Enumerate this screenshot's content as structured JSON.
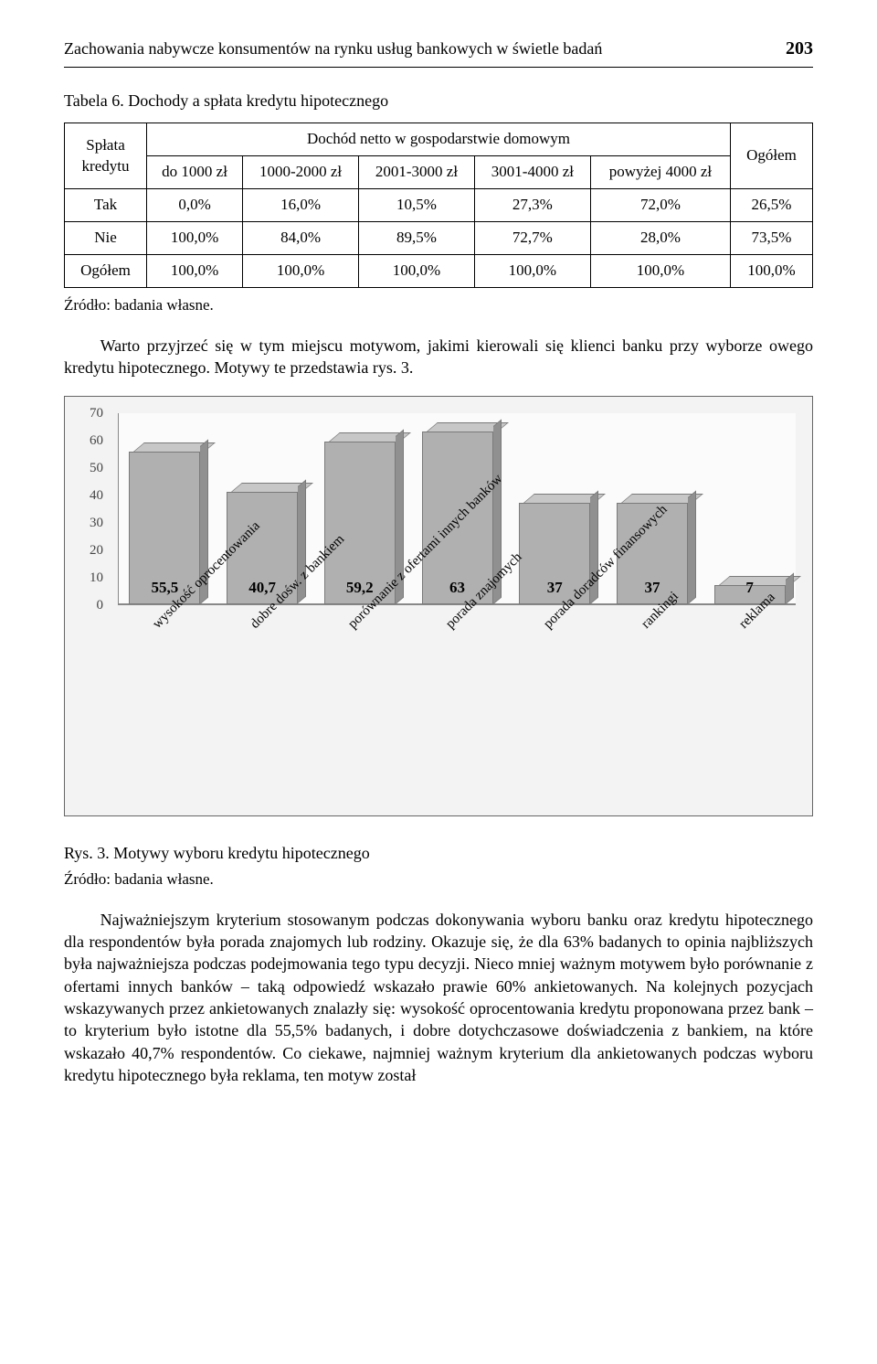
{
  "header": {
    "running_title": "Zachowania nabywcze konsumentów na rynku usług bankowych w świetle badań",
    "page_number": "203"
  },
  "table6": {
    "caption": "Tabela 6. Dochody a spłata kredytu hipotecznego",
    "row_header_top": "Spłata",
    "row_header_bottom": "kredytu",
    "super_header": "Dochód netto w gospodarstwie domowym",
    "total_header": "Ogółem",
    "cols": [
      "do 1000 zł",
      "1000-2000 zł",
      "2001-3000 zł",
      "3001-4000 zł",
      "powyżej 4000 zł"
    ],
    "rows": [
      {
        "label": "Tak",
        "cells": [
          "0,0%",
          "16,0%",
          "10,5%",
          "27,3%",
          "72,0%"
        ],
        "total": "26,5%"
      },
      {
        "label": "Nie",
        "cells": [
          "100,0%",
          "84,0%",
          "89,5%",
          "72,7%",
          "28,0%"
        ],
        "total": "73,5%"
      },
      {
        "label": "Ogółem",
        "cells": [
          "100,0%",
          "100,0%",
          "100,0%",
          "100,0%",
          "100,0%"
        ],
        "total": "100,0%"
      }
    ],
    "source": "Źródło: badania własne."
  },
  "para1": "Warto przyjrzeć się w tym miejscu motywom, jakimi kierowali się klienci banku przy wyborze owego kredytu hipotecznego. Motywy te przedstawia rys. 3.",
  "chart": {
    "ymax": 70,
    "yticks": [
      "70",
      "60",
      "50",
      "40",
      "30",
      "20",
      "10",
      "0"
    ],
    "bars": [
      {
        "label": "55,5",
        "value": 55.5,
        "xlabel": "wysokość oprocentowania"
      },
      {
        "label": "40,7",
        "value": 40.7,
        "xlabel": "dobre dośw. z bankiem"
      },
      {
        "label": "59,2",
        "value": 59.2,
        "xlabel": "porównanie z ofertami innych banków"
      },
      {
        "label": "63",
        "value": 63,
        "xlabel": "porada znajomych"
      },
      {
        "label": "37",
        "value": 37,
        "xlabel": "porada doradców finansowych"
      },
      {
        "label": "37",
        "value": 37,
        "xlabel": "rankingi"
      },
      {
        "label": "7",
        "value": 7,
        "xlabel": "reklama"
      }
    ],
    "bar_color": "#b0b0b0",
    "bar_border": "#7a7a7a",
    "bg": "#f3f3f3"
  },
  "fig3": {
    "caption": "Rys. 3. Motywy wyboru kredytu hipotecznego",
    "source": "Źródło: badania własne."
  },
  "para2": "Najważniejszym kryterium stosowanym podczas dokonywania wyboru banku oraz kredytu hipotecznego dla respondentów była porada znajomych lub rodziny. Okazuje się, że dla 63% badanych to opinia najbliższych była najważniejsza podczas podejmowania tego typu decyzji. Nieco mniej ważnym motywem było porównanie z ofertami innych banków – taką odpowiedź wskazało prawie 60% ankietowanych. Na kolejnych pozycjach wskazywanych przez ankietowanych znalazły się: wysokość oprocentowania kredytu proponowana przez bank – to kryterium było istotne dla 55,5% badanych, i dobre dotychczasowe doświadczenia z bankiem, na które wskazało 40,7% respondentów. Co ciekawe, najmniej ważnym kryterium dla ankietowanych podczas wyboru kredytu hipotecznego była reklama, ten motyw został"
}
